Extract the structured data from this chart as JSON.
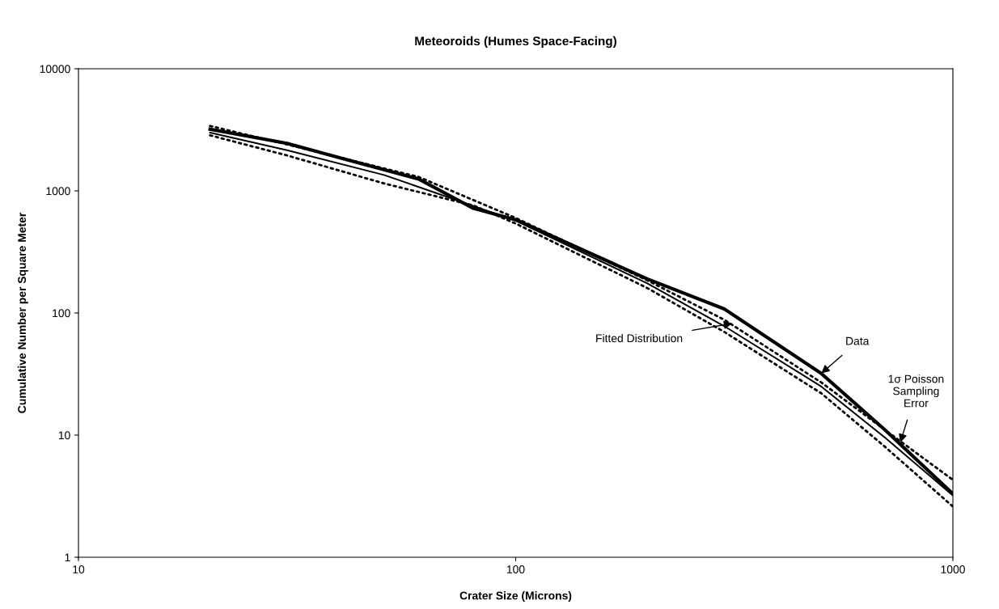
{
  "chart_data": {
    "type": "line",
    "title": "Meteoroids (Humes Space-Facing)",
    "xlabel": "Crater Size (Microns)",
    "ylabel": "Cumulative Number per Square Meter",
    "log": "xy",
    "xlim": [
      10,
      1000
    ],
    "ylim": [
      1,
      10000
    ],
    "xticks": [
      10,
      100,
      1000
    ],
    "yticks": [
      1,
      10,
      100,
      1000,
      10000
    ],
    "grid": false,
    "legend": false,
    "marker": "none",
    "series": [
      {
        "color": "#000000",
        "line_style": "solid",
        "x": [
          20,
          30,
          40,
          60,
          80,
          100,
          200,
          300,
          500,
          700,
          1000
        ],
        "values": [
          3200,
          2450,
          1850,
          1250,
          720,
          580,
          190,
          108,
          32,
          11,
          3.3
        ]
      },
      {
        "color": "#000000",
        "line_style": "solid",
        "x": [
          20,
          30,
          50,
          100,
          200,
          300,
          500,
          700,
          1000
        ],
        "values": [
          3000,
          2150,
          1350,
          570,
          175,
          78,
          25,
          9.5,
          3.2
        ]
      },
      {
        "color": "#000000",
        "line_style": "dotted",
        "x": [
          20,
          30,
          60,
          100,
          200,
          300,
          500,
          700,
          1000
        ],
        "values": [
          3400,
          2400,
          1300,
          600,
          185,
          88,
          27,
          11,
          4.3
        ]
      },
      {
        "color": "#000000",
        "line_style": "dotted",
        "x": [
          20,
          30,
          50,
          80,
          100,
          200,
          300,
          500,
          700,
          1000
        ],
        "values": [
          2850,
          1950,
          1150,
          760,
          540,
          160,
          70,
          22,
          8,
          2.6
        ]
      }
    ],
    "annotations": [
      {
        "text": "Fitted Distribution",
        "x": 313,
        "y": 82
      },
      {
        "text": "Data",
        "x": 500,
        "y": 32
      },
      {
        "text": "1σ Poisson\nSampling\nError",
        "x": 758,
        "y": 8.7
      }
    ]
  }
}
